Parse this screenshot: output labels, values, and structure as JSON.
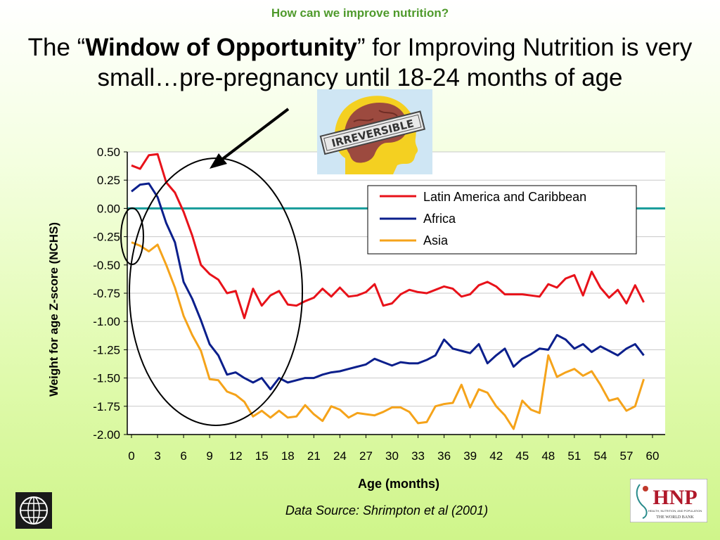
{
  "slide": {
    "kicker": "How can we improve nutrition?",
    "title_pre": "The “",
    "title_bold": "Window of Opportunity",
    "title_post": "” for Improving Nutrition is very small…pre-pregnancy until 18-24 months of age",
    "stamp_text": "IRREVERSIBLE",
    "source": "Data Source: Shrimpton  et al (2001)",
    "logo_right_text": "HNP",
    "logo_right_sub": "HEALTH, NUTRITION, AND POPULATION",
    "logo_right_org": "THE WORLD BANK"
  },
  "icons": [
    "world-bank-globe-icon",
    "brain-head-icon",
    "hnp-logo-icon",
    "arrow-icon"
  ],
  "colors": {
    "kicker": "#4f9a2c",
    "latin_america": "#e8121a",
    "africa": "#0b1f8c",
    "asia": "#f5a31a",
    "zero_line": "#169c9a",
    "plot_background": "#ffffff",
    "gridline": "#c8c8c8"
  },
  "chart_data": {
    "type": "line",
    "title": "",
    "xlabel": "Age (months)",
    "ylabel": "Weight for age Z-score (NCHS)",
    "xlim": [
      0,
      60
    ],
    "ylim": [
      -2.0,
      0.5
    ],
    "xticks": [
      0,
      3,
      6,
      9,
      12,
      15,
      18,
      21,
      24,
      27,
      30,
      33,
      36,
      39,
      42,
      45,
      48,
      51,
      54,
      57,
      60
    ],
    "yticks": [
      "0.50",
      "0.25",
      "0.00",
      "-0.25",
      "-0.50",
      "-0.75",
      "-1.00",
      "-1.25",
      "-1.50",
      "-1.75",
      "-2.00"
    ],
    "grid": true,
    "legend_position": "top-right",
    "reference_line": 0,
    "series": [
      {
        "name": "Latin America and Caribbean",
        "x": [
          0,
          1,
          2,
          3,
          4,
          5,
          6,
          7,
          8,
          9,
          10,
          11,
          12,
          13,
          14,
          15,
          16,
          17,
          18,
          19,
          20,
          21,
          22,
          23,
          24,
          25,
          26,
          27,
          28,
          29,
          30,
          31,
          32,
          33,
          34,
          35,
          36,
          37,
          38,
          39,
          40,
          41,
          42,
          43,
          44,
          45,
          46,
          47,
          48,
          49,
          50,
          51,
          52,
          53,
          54,
          55,
          56,
          57,
          58,
          59
        ],
        "values": [
          0.38,
          0.35,
          0.47,
          0.48,
          0.23,
          0.14,
          -0.03,
          -0.24,
          -0.5,
          -0.58,
          -0.63,
          -0.75,
          -0.73,
          -0.97,
          -0.71,
          -0.86,
          -0.77,
          -0.73,
          -0.85,
          -0.86,
          -0.82,
          -0.79,
          -0.71,
          -0.78,
          -0.7,
          -0.78,
          -0.77,
          -0.74,
          -0.67,
          -0.86,
          -0.84,
          -0.76,
          -0.72,
          -0.74,
          -0.75,
          -0.72,
          -0.69,
          -0.71,
          -0.78,
          -0.76,
          -0.68,
          -0.65,
          -0.69,
          -0.76,
          -0.76,
          -0.76,
          -0.77,
          -0.78,
          -0.67,
          -0.7,
          -0.62,
          -0.59,
          -0.77,
          -0.56,
          -0.7,
          -0.79,
          -0.72,
          -0.84,
          -0.68,
          -0.83
        ]
      },
      {
        "name": "Africa",
        "x": [
          0,
          1,
          2,
          3,
          4,
          5,
          6,
          7,
          8,
          9,
          10,
          11,
          12,
          13,
          14,
          15,
          16,
          17,
          18,
          19,
          20,
          21,
          22,
          23,
          24,
          25,
          26,
          27,
          28,
          29,
          30,
          31,
          32,
          33,
          34,
          35,
          36,
          37,
          38,
          39,
          40,
          41,
          42,
          43,
          44,
          45,
          46,
          47,
          48,
          49,
          50,
          51,
          52,
          53,
          54,
          55,
          56,
          57,
          58,
          59
        ],
        "values": [
          0.15,
          0.21,
          0.22,
          0.1,
          -0.13,
          -0.3,
          -0.65,
          -0.8,
          -0.99,
          -1.2,
          -1.3,
          -1.47,
          -1.45,
          -1.5,
          -1.54,
          -1.5,
          -1.6,
          -1.5,
          -1.54,
          -1.52,
          -1.5,
          -1.5,
          -1.47,
          -1.45,
          -1.44,
          -1.42,
          -1.4,
          -1.38,
          -1.33,
          -1.36,
          -1.39,
          -1.36,
          -1.37,
          -1.37,
          -1.34,
          -1.3,
          -1.16,
          -1.24,
          -1.26,
          -1.28,
          -1.2,
          -1.37,
          -1.3,
          -1.24,
          -1.4,
          -1.33,
          -1.29,
          -1.24,
          -1.25,
          -1.12,
          -1.16,
          -1.24,
          -1.2,
          -1.27,
          -1.22,
          -1.26,
          -1.3,
          -1.24,
          -1.2,
          -1.3
        ]
      },
      {
        "name": "Asia",
        "x": [
          0,
          1,
          2,
          3,
          4,
          5,
          6,
          7,
          8,
          9,
          10,
          11,
          12,
          13,
          14,
          15,
          16,
          17,
          18,
          19,
          20,
          21,
          22,
          23,
          24,
          25,
          26,
          27,
          28,
          29,
          30,
          31,
          32,
          33,
          34,
          35,
          36,
          37,
          38,
          39,
          40,
          41,
          42,
          43,
          44,
          45,
          46,
          47,
          48,
          49,
          50,
          51,
          52,
          53,
          54,
          55,
          56,
          57,
          58,
          59
        ],
        "values": [
          -0.3,
          -0.33,
          -0.38,
          -0.32,
          -0.5,
          -0.7,
          -0.95,
          -1.12,
          -1.26,
          -1.51,
          -1.52,
          -1.62,
          -1.65,
          -1.71,
          -1.84,
          -1.79,
          -1.85,
          -1.79,
          -1.85,
          -1.84,
          -1.74,
          -1.82,
          -1.88,
          -1.75,
          -1.78,
          -1.85,
          -1.81,
          -1.82,
          -1.83,
          -1.8,
          -1.76,
          -1.76,
          -1.8,
          -1.9,
          -1.89,
          -1.75,
          -1.73,
          -1.72,
          -1.56,
          -1.76,
          -1.6,
          -1.63,
          -1.75,
          -1.83,
          -1.95,
          -1.7,
          -1.78,
          -1.81,
          -1.3,
          -1.49,
          -1.45,
          -1.42,
          -1.48,
          -1.44,
          -1.56,
          -1.7,
          -1.68,
          -1.79,
          -1.75,
          -1.51
        ]
      }
    ]
  }
}
